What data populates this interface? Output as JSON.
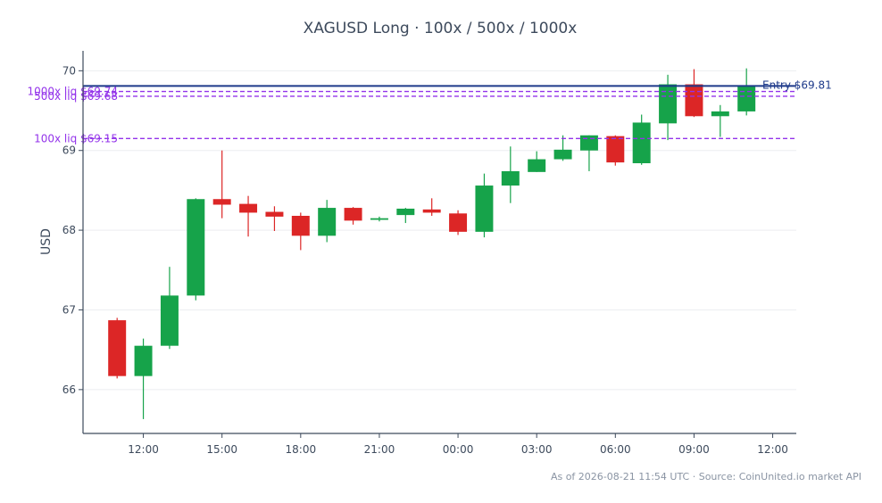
{
  "chart_data": {
    "type": "candlestick",
    "title": "XAGUSD Long · 100x / 500x / 1000x",
    "ylabel": "USD",
    "xlabel": "",
    "ylim": [
      65.45,
      70.25
    ],
    "yticks": [
      66,
      67,
      68,
      69,
      70
    ],
    "xlim": [
      -1.3,
      25.9
    ],
    "xticks": [
      {
        "pos": 1,
        "label": "12:00"
      },
      {
        "pos": 4,
        "label": "15:00"
      },
      {
        "pos": 7,
        "label": "18:00"
      },
      {
        "pos": 10,
        "label": "21:00"
      },
      {
        "pos": 13,
        "label": "00:00"
      },
      {
        "pos": 16,
        "label": "03:00"
      },
      {
        "pos": 19,
        "label": "06:00"
      },
      {
        "pos": 22,
        "label": "09:00"
      },
      {
        "pos": 25,
        "label": "12:00"
      }
    ],
    "grid": true,
    "colors": {
      "up": "#16a34a",
      "down": "#dc2626",
      "entry": "#1e3a8a",
      "liq": "#9333ea"
    },
    "candles": [
      {
        "open": 66.87,
        "high": 66.9,
        "low": 66.14,
        "close": 66.17
      },
      {
        "open": 66.17,
        "high": 66.64,
        "low": 65.63,
        "close": 66.55
      },
      {
        "open": 66.55,
        "high": 67.54,
        "low": 66.51,
        "close": 67.18
      },
      {
        "open": 67.18,
        "high": 68.4,
        "low": 67.12,
        "close": 68.39
      },
      {
        "open": 68.39,
        "high": 69.0,
        "low": 68.15,
        "close": 68.32
      },
      {
        "open": 68.33,
        "high": 68.43,
        "low": 67.92,
        "close": 68.22
      },
      {
        "open": 68.23,
        "high": 68.3,
        "low": 67.99,
        "close": 68.17
      },
      {
        "open": 68.18,
        "high": 68.22,
        "low": 67.75,
        "close": 67.93
      },
      {
        "open": 67.93,
        "high": 68.38,
        "low": 67.85,
        "close": 68.28
      },
      {
        "open": 68.28,
        "high": 68.29,
        "low": 68.07,
        "close": 68.12
      },
      {
        "open": 68.13,
        "high": 68.17,
        "low": 68.11,
        "close": 68.15
      },
      {
        "open": 68.19,
        "high": 68.28,
        "low": 68.09,
        "close": 68.27
      },
      {
        "open": 68.26,
        "high": 68.4,
        "low": 68.18,
        "close": 68.22
      },
      {
        "open": 68.21,
        "high": 68.25,
        "low": 67.94,
        "close": 67.98
      },
      {
        "open": 67.98,
        "high": 68.71,
        "low": 67.91,
        "close": 68.56
      },
      {
        "open": 68.56,
        "high": 69.05,
        "low": 68.34,
        "close": 68.74
      },
      {
        "open": 68.73,
        "high": 68.99,
        "low": 68.73,
        "close": 68.89
      },
      {
        "open": 68.89,
        "high": 69.19,
        "low": 68.87,
        "close": 69.01
      },
      {
        "open": 69.0,
        "high": 69.19,
        "low": 68.74,
        "close": 69.19
      },
      {
        "open": 69.18,
        "high": 69.19,
        "low": 68.81,
        "close": 68.85
      },
      {
        "open": 68.84,
        "high": 69.45,
        "low": 68.82,
        "close": 69.35
      },
      {
        "open": 69.34,
        "high": 69.95,
        "low": 69.13,
        "close": 69.83
      },
      {
        "open": 69.83,
        "high": 70.02,
        "low": 69.42,
        "close": 69.43
      },
      {
        "open": 69.43,
        "high": 69.57,
        "low": 69.17,
        "close": 69.49
      },
      {
        "open": 69.49,
        "high": 70.03,
        "low": 69.44,
        "close": 69.81
      }
    ],
    "entry": {
      "label": "Entry $69.81",
      "value": 69.81
    },
    "liquidation_levels": [
      {
        "label": "1000x liq $69.74",
        "value": 69.74
      },
      {
        "label": "500x liq $69.68",
        "value": 69.68
      },
      {
        "label": "100x liq $69.15",
        "value": 69.15
      }
    ]
  },
  "footer": "As of 2026-08-21 11:54 UTC · Source: CoinUnited.io market API"
}
